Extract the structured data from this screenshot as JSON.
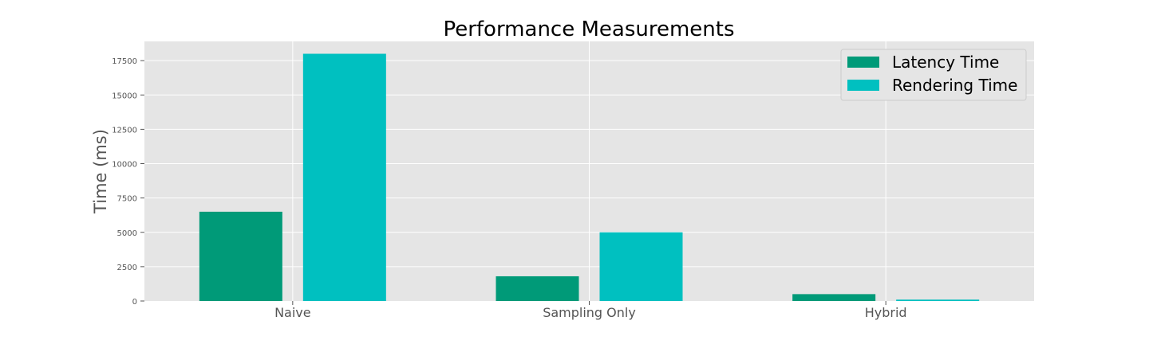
{
  "chart_data": {
    "type": "bar",
    "title": "Performance Measurements",
    "xlabel": "",
    "ylabel": "Time (ms)",
    "categories": [
      "Naive",
      "Sampling Only",
      "Hybrid"
    ],
    "series": [
      {
        "name": "Latency Time",
        "values": [
          6500,
          1800,
          500
        ],
        "color": "#009a78"
      },
      {
        "name": "Rendering Time",
        "values": [
          18000,
          5000,
          100
        ],
        "color": "#00c0c0"
      }
    ],
    "ylim": [
      0,
      18900
    ],
    "yticks": [
      0,
      2500,
      5000,
      7500,
      10000,
      12500,
      15000,
      17500
    ],
    "ytick_labels": [
      "0",
      "2500",
      "5000",
      "7500",
      "10000",
      "12500",
      "15000",
      "17500"
    ],
    "grid": true,
    "legend_position": "top-right",
    "plot_background": "#e5e5e5",
    "grid_color": "#ffffff"
  }
}
